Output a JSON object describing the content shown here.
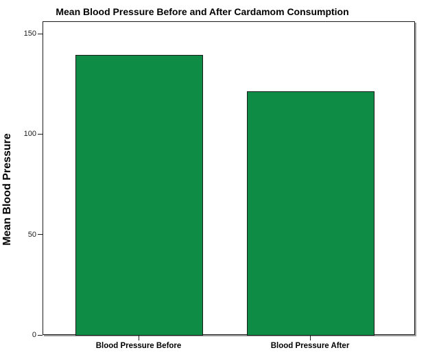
{
  "chart_data": {
    "type": "bar",
    "title": "Mean Blood Pressure Before and After Cardamom Consumption",
    "categories": [
      "Blood Pressure Before",
      "Blood Pressure After"
    ],
    "values": [
      139.7,
      121.5
    ],
    "xlabel": "",
    "ylabel": "Mean Blood Pressure",
    "ylim": [
      0,
      150
    ],
    "yticks": [
      0,
      50,
      100,
      150
    ],
    "grid": false,
    "legend": "none",
    "colors": {
      "bar_fill": "#0E8C46",
      "bar_border": "#1A1A1A",
      "axis": "#1A1A1A",
      "frame_shadow": "#9E9E9E",
      "text": "#000000",
      "background": "#FFFFFF"
    }
  }
}
